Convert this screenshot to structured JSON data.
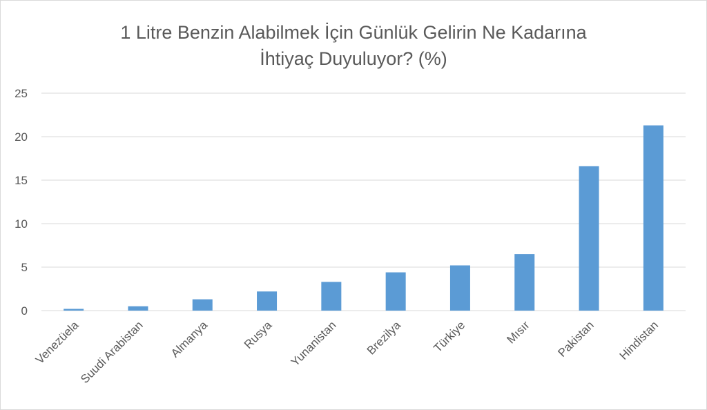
{
  "chart_data": {
    "type": "bar",
    "title": "1 Litre Benzin Alabilmek İçin Günlük Gelirin Ne Kadarına\nİhtiyaç Duyuluyor? (%)",
    "xlabel": "",
    "ylabel": "",
    "categories": [
      "Venezüela",
      "Suudi Arabistan",
      "Almanya",
      "Rusya",
      "Yunanistan",
      "Brezilya",
      "Türkiye",
      "Mısır",
      "Pakistan",
      "Hindistan"
    ],
    "values": [
      0.2,
      0.5,
      1.3,
      2.2,
      3.3,
      4.4,
      5.2,
      6.5,
      16.6,
      21.3
    ],
    "ylim": [
      0,
      25
    ],
    "yticks": [
      0,
      5,
      10,
      15,
      20,
      25
    ],
    "grid": true,
    "legend": "none",
    "bar_color": "#5b9bd5"
  }
}
